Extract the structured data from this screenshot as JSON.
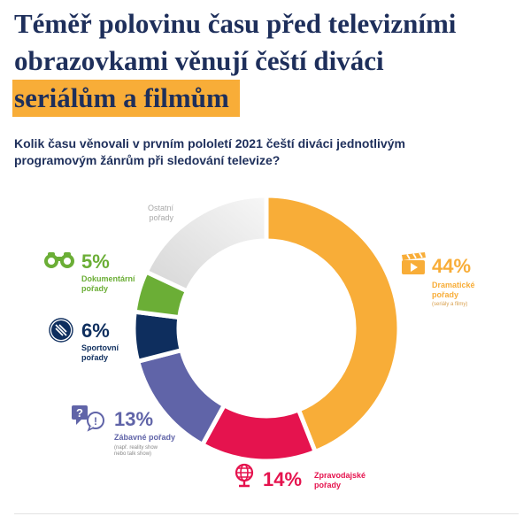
{
  "title": {
    "line1": "Téměř polovinu času před televizními",
    "line2": "obrazovkami věnují čeští diváci",
    "line3": "seriálům a filmům"
  },
  "question": "Kolik času věnovali v prvním pololetí 2021 čeští diváci jednotlivým programovým žánrům při sledování televize?",
  "chart_data": {
    "type": "pie",
    "subtype": "donut",
    "unit": "%",
    "start": "top, clockwise",
    "slices": [
      {
        "key": "drama",
        "value": 44,
        "label": "44%",
        "name_line1": "Dramatické",
        "name_line2": "pořady",
        "note": "(seriály a filmy)",
        "color": "#f8ad38",
        "icon": "clapperboard-icon"
      },
      {
        "key": "news",
        "value": 14,
        "label": "14%",
        "name_line1": "Zpravodajské",
        "name_line2": "pořady",
        "color": "#e5134e",
        "icon": "globe-icon"
      },
      {
        "key": "ent",
        "value": 13,
        "label": "13%",
        "name_line1": "Zábavné pořady",
        "note_line1": "(např. reality show",
        "note_line2": "nebo talk show)",
        "color": "#6064a8",
        "icon": "question-bubble-icon"
      },
      {
        "key": "sport",
        "value": 6,
        "label": "6%",
        "name_line1": "Sportovní",
        "name_line2": "pořady",
        "color": "#0e2e5e",
        "icon": "ball-icon"
      },
      {
        "key": "doc",
        "value": 5,
        "label": "5%",
        "name_line1": "Dokumentární",
        "name_line2": "pořady",
        "color": "#6bae36",
        "icon": "binoculars-icon"
      },
      {
        "key": "other",
        "value": 18,
        "name_line1": "Ostatní",
        "name_line2": "pořady",
        "color": "#dedede"
      }
    ]
  }
}
